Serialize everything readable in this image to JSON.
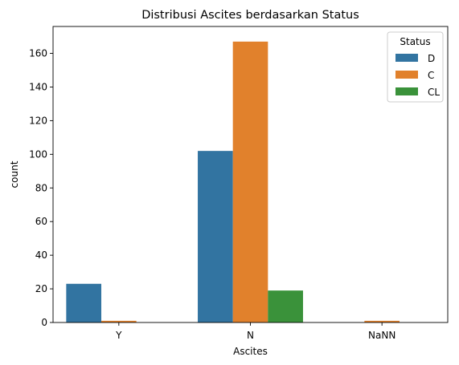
{
  "chart_data": {
    "type": "bar",
    "title": "Distribusi Ascites berdasarkan Status",
    "xlabel": "Ascites",
    "ylabel": "count",
    "categories": [
      "Y",
      "N",
      "NaNN"
    ],
    "series": [
      {
        "name": "D",
        "color": "#3274a1",
        "values": [
          23,
          102,
          0
        ]
      },
      {
        "name": "C",
        "color": "#e1812c",
        "values": [
          1,
          167,
          1
        ]
      },
      {
        "name": "CL",
        "color": "#3a923a",
        "values": [
          0,
          19,
          0
        ]
      }
    ],
    "ylim": [
      0,
      176
    ],
    "yticks": [
      0,
      20,
      40,
      60,
      80,
      100,
      120,
      140,
      160
    ],
    "grid": false,
    "legend": {
      "title": "Status",
      "placement": "top-right"
    }
  }
}
